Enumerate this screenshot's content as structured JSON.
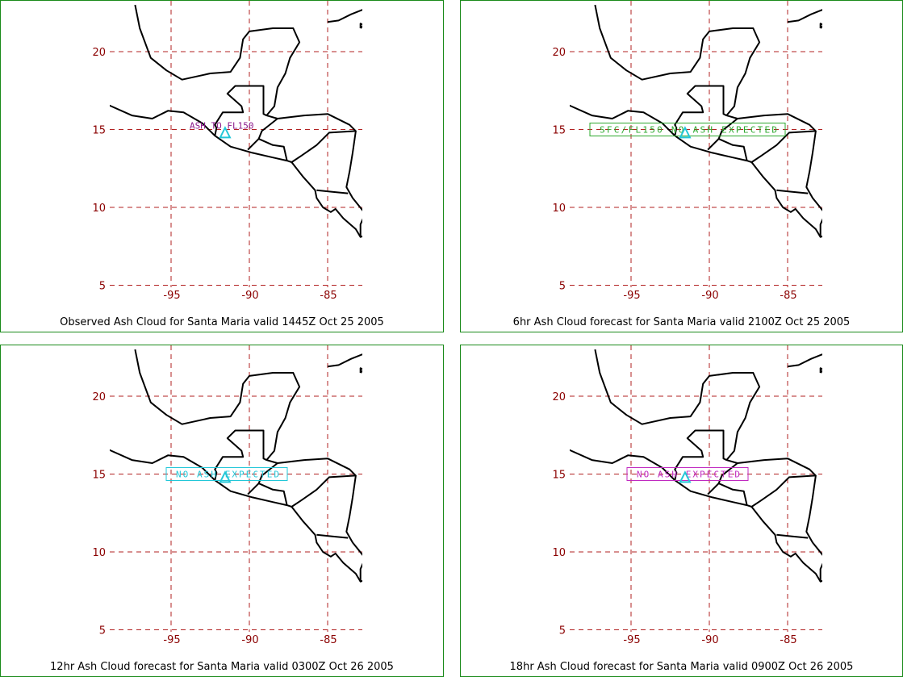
{
  "map": {
    "lon_ticks": [
      -95,
      -90,
      -85
    ],
    "lat_ticks": [
      20,
      15,
      10,
      5
    ],
    "lon_labels": [
      "-95",
      "-90",
      "-85"
    ],
    "lat_labels": [
      "20",
      "15",
      "10",
      "5"
    ],
    "grid_color": "#b22222",
    "coast_color": "#000000",
    "volcano_color": "#22c7d8"
  },
  "panels": [
    {
      "caption": "Observed Ash Cloud for Santa  Maria valid 1445Z Oct 25 2005",
      "annotation": "ASH TO FL150",
      "annotation_color": "#8b1a8b",
      "annotation_boxed": false
    },
    {
      "caption": "6hr Ash Cloud forecast for Santa  Maria valid 2100Z Oct 25 2005",
      "annotation": "SFC/FL150 NO ASH EXPECTED",
      "annotation_color": "#2ea82e",
      "annotation_boxed": true
    },
    {
      "caption": "12hr Ash Cloud forecast for Santa  Maria valid 0300Z Oct 26 2005",
      "annotation": "NO ASH EXPECTED",
      "annotation_color": "#22c7d8",
      "annotation_boxed": true
    },
    {
      "caption": "18hr Ash Cloud forecast for Santa  Maria valid 0900Z Oct 26 2005",
      "annotation": "NO ASH EXPECTED",
      "annotation_color": "#c02ac0",
      "annotation_boxed": true
    }
  ]
}
